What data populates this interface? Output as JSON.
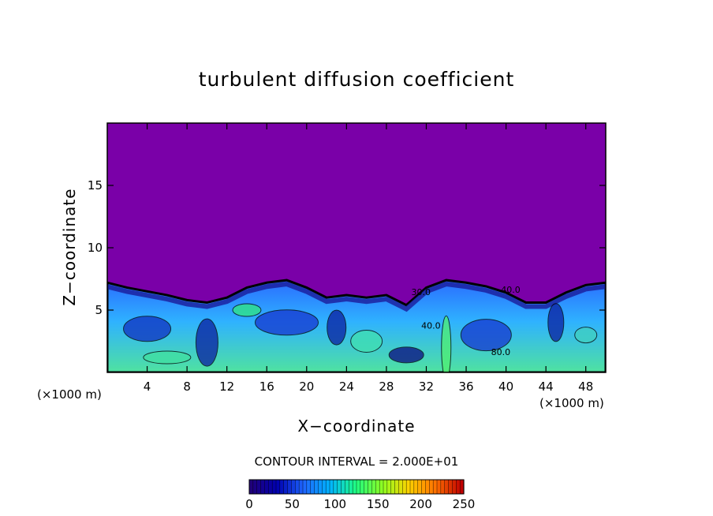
{
  "chart_data": {
    "type": "heatmap",
    "title": "turbulent diffusion coefficient",
    "xlabel": "X−coordinate",
    "ylabel": "Z−coordinate",
    "x_unit": "(×1000 m)",
    "y_unit": "(×1000 m)",
    "xlim": [
      0,
      50
    ],
    "ylim": [
      0,
      20
    ],
    "x_ticks": [
      4,
      8,
      12,
      16,
      20,
      24,
      28,
      32,
      36,
      40,
      44,
      48
    ],
    "y_ticks": [
      5,
      10,
      15
    ],
    "contour_interval_text": "CONTOUR INTERVAL = 2.000E+01",
    "contour_interval": 20,
    "colorbar": {
      "min": 0,
      "max": 250,
      "ticks": [
        0,
        50,
        100,
        150,
        200,
        250
      ],
      "colors": [
        "#20007a",
        "#0000b0",
        "#1e66ff",
        "#00b4ff",
        "#20ff80",
        "#90ff20",
        "#ffd000",
        "#ff7000",
        "#c00000"
      ]
    },
    "background_color": "#7a00a8",
    "contour_labels": [
      {
        "x": 30.5,
        "z": 6.2,
        "text": "30.0"
      },
      {
        "x": 39.5,
        "z": 6.4,
        "text": "40.0"
      },
      {
        "x": 31.5,
        "z": 3.5,
        "text": "40.0"
      },
      {
        "x": 38.5,
        "z": 1.4,
        "text": "80.0"
      }
    ],
    "turbulent_layer_top_km": 7.2,
    "series": [
      {
        "description": "boundary-layer top height",
        "x": [
          0,
          2,
          4,
          6,
          8,
          10,
          12,
          14,
          16,
          18,
          20,
          22,
          24,
          26,
          28,
          30,
          32,
          34,
          36,
          38,
          40,
          42,
          44,
          46,
          48,
          50
        ],
        "z": [
          7.2,
          6.8,
          6.5,
          6.2,
          5.8,
          5.6,
          6.0,
          6.8,
          7.2,
          7.4,
          6.8,
          6.0,
          6.2,
          6.0,
          6.2,
          5.4,
          6.8,
          7.4,
          7.2,
          6.9,
          6.4,
          5.6,
          5.6,
          6.4,
          7.0,
          7.2
        ]
      }
    ]
  }
}
